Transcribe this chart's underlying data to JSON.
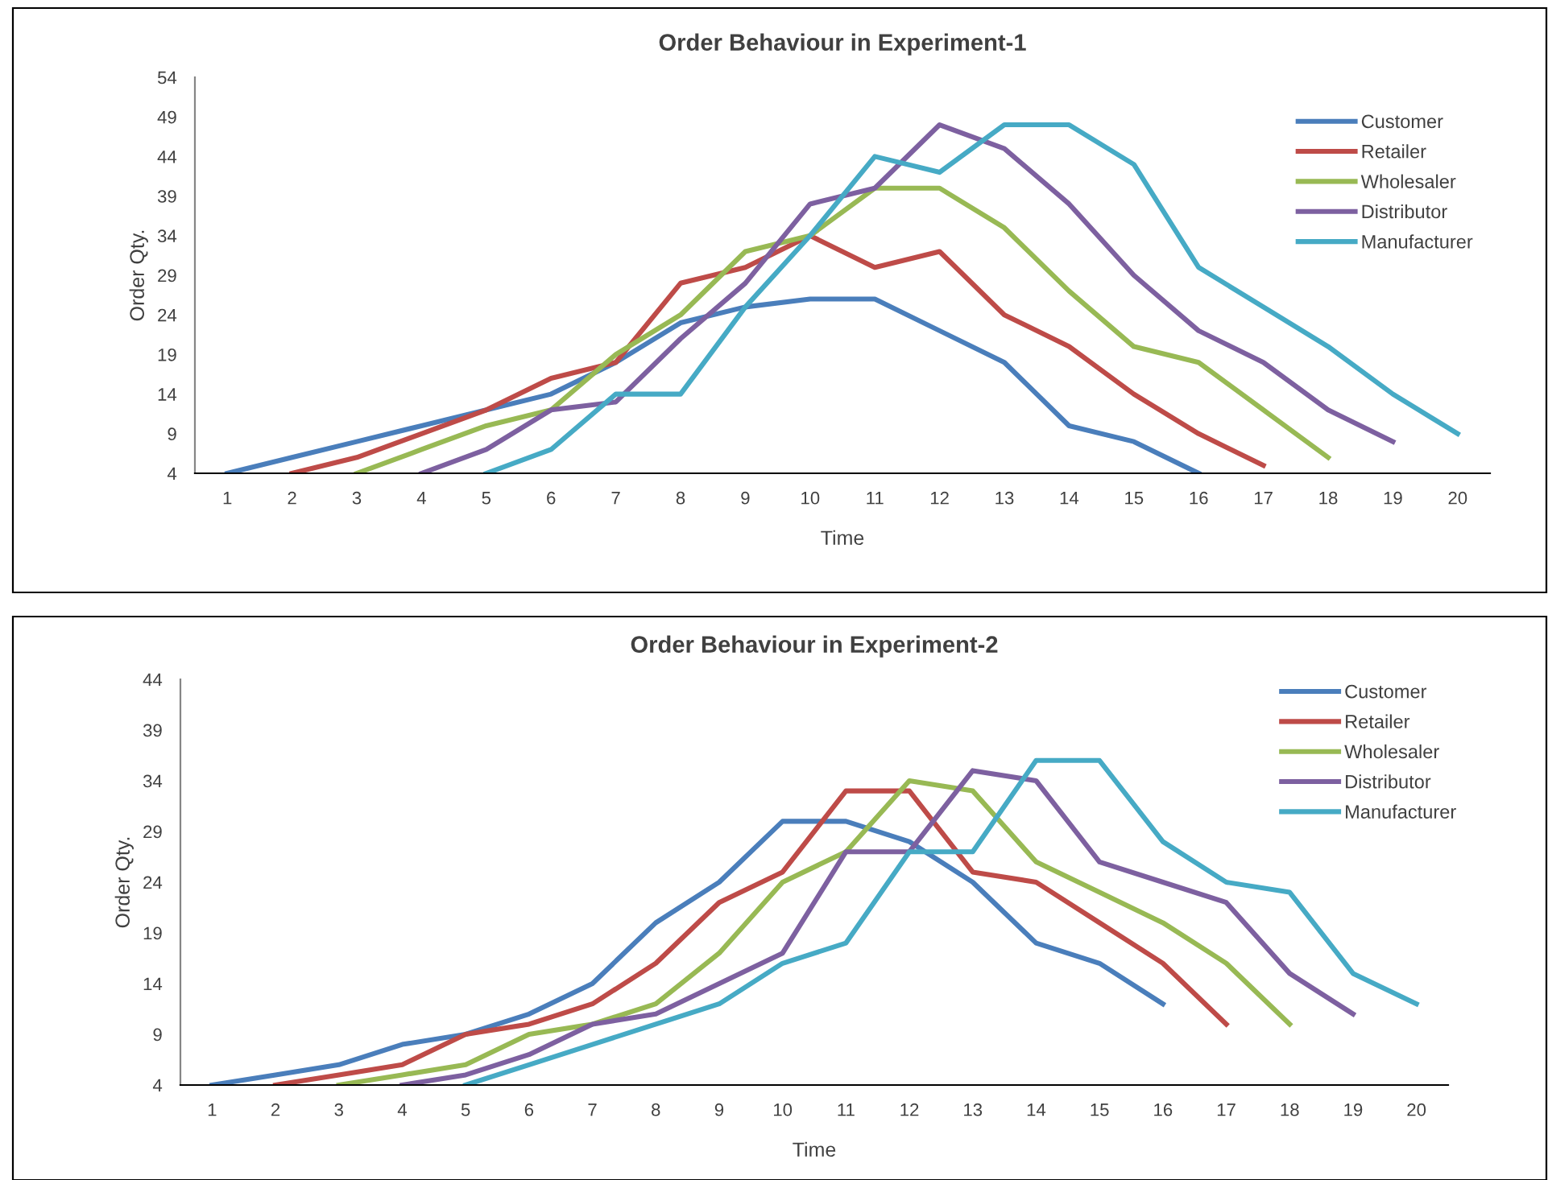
{
  "chart_data": [
    {
      "type": "line",
      "title": "Order Behaviour in Experiment-1",
      "xlabel": "Time",
      "ylabel": "Order Qty.",
      "categories": [
        "1",
        "2",
        "3",
        "4",
        "5",
        "6",
        "7",
        "8",
        "9",
        "10",
        "11",
        "12",
        "13",
        "14",
        "15",
        "16",
        "17",
        "18",
        "19",
        "20"
      ],
      "ylim": [
        4,
        54
      ],
      "yticks": [
        4,
        9,
        14,
        19,
        24,
        29,
        34,
        39,
        44,
        49,
        54
      ],
      "grid": false,
      "legend": "top right",
      "marker": "none",
      "line_style": "solid",
      "series": [
        {
          "name": "Customer",
          "color": "#4a7ebb",
          "values": [
            4,
            6,
            8,
            10,
            12,
            14,
            18,
            23,
            25,
            26,
            26,
            22,
            18,
            10,
            8,
            4,
            null,
            null,
            null,
            null
          ]
        },
        {
          "name": "Retailer",
          "color": "#be4b48",
          "values": [
            null,
            4,
            6,
            9,
            12,
            16,
            18,
            28,
            30,
            34,
            30,
            32,
            24,
            20,
            14,
            9,
            5,
            null,
            null,
            null
          ]
        },
        {
          "name": "Wholesaler",
          "color": "#98b954",
          "values": [
            null,
            null,
            4,
            7,
            10,
            12,
            19,
            24,
            32,
            34,
            40,
            40,
            35,
            27,
            20,
            18,
            12,
            6,
            null,
            null
          ]
        },
        {
          "name": "Distributor",
          "color": "#7d60a0",
          "values": [
            null,
            null,
            null,
            4,
            7,
            12,
            13,
            21,
            28,
            38,
            40,
            48,
            45,
            38,
            29,
            22,
            18,
            12,
            8,
            null
          ]
        },
        {
          "name": "Manufacturer",
          "color": "#46aac5",
          "values": [
            null,
            null,
            null,
            null,
            4,
            7,
            14,
            14,
            25,
            34,
            44,
            42,
            48,
            48,
            43,
            30,
            25,
            20,
            14,
            9
          ]
        }
      ]
    },
    {
      "type": "line",
      "title": "Order Behaviour in Experiment-2",
      "xlabel": "Time",
      "ylabel": "Order Qty.",
      "categories": [
        "1",
        "2",
        "3",
        "4",
        "5",
        "6",
        "7",
        "8",
        "9",
        "10",
        "11",
        "12",
        "13",
        "14",
        "15",
        "16",
        "17",
        "18",
        "19",
        "20"
      ],
      "ylim": [
        4,
        44
      ],
      "yticks": [
        4,
        9,
        14,
        19,
        24,
        29,
        34,
        39,
        44
      ],
      "grid": false,
      "legend": "top right",
      "marker": "none",
      "line_style": "solid",
      "series": [
        {
          "name": "Customer",
          "color": "#4a7ebb",
          "values": [
            4,
            5,
            6,
            8,
            9,
            11,
            14,
            20,
            24,
            30,
            30,
            28,
            24,
            18,
            16,
            12,
            null,
            null,
            null,
            null
          ]
        },
        {
          "name": "Retailer",
          "color": "#be4b48",
          "values": [
            null,
            4,
            5,
            6,
            9,
            10,
            12,
            16,
            22,
            25,
            33,
            33,
            25,
            24,
            20,
            16,
            10,
            null,
            null,
            null
          ]
        },
        {
          "name": "Wholesaler",
          "color": "#98b954",
          "values": [
            null,
            null,
            4,
            5,
            6,
            9,
            10,
            12,
            17,
            24,
            27,
            34,
            33,
            26,
            23,
            20,
            16,
            10,
            null,
            null
          ]
        },
        {
          "name": "Distributor",
          "color": "#7d60a0",
          "values": [
            null,
            null,
            null,
            4,
            5,
            7,
            10,
            11,
            14,
            17,
            27,
            27,
            35,
            34,
            26,
            24,
            22,
            15,
            11,
            null
          ]
        },
        {
          "name": "Manufacturer",
          "color": "#46aac5",
          "values": [
            null,
            null,
            null,
            null,
            4,
            6,
            8,
            10,
            12,
            16,
            18,
            27,
            27,
            36,
            36,
            28,
            24,
            23,
            15,
            12
          ]
        }
      ]
    }
  ]
}
